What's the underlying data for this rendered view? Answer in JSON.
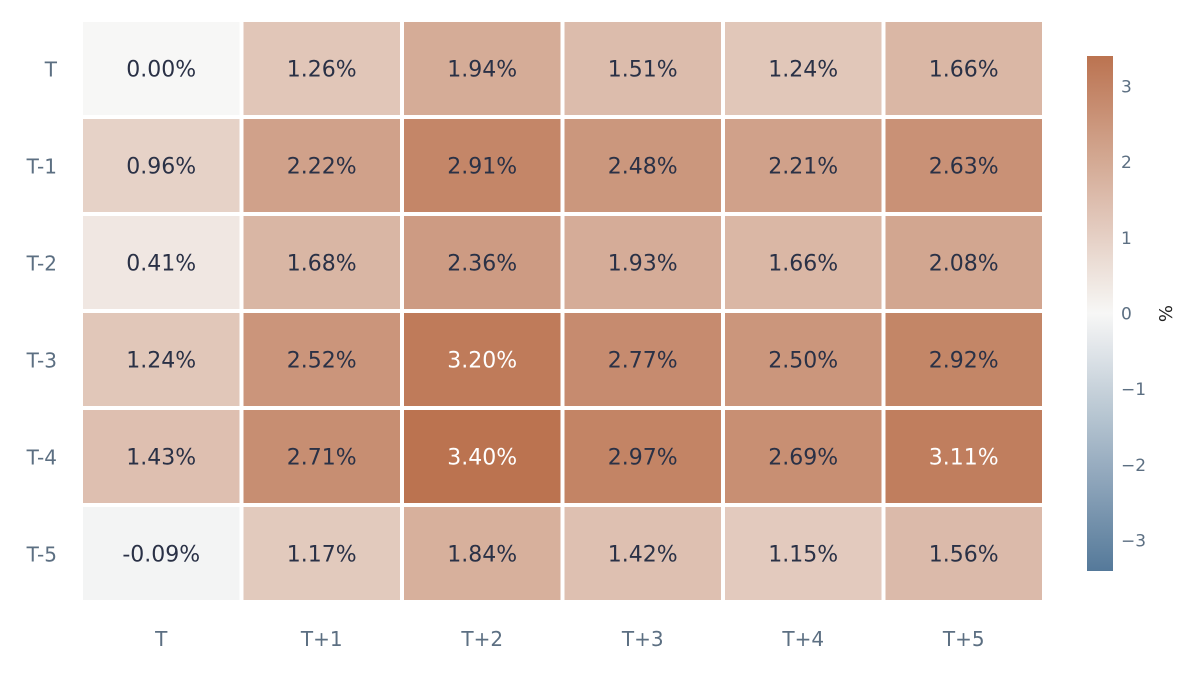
{
  "chart_data": {
    "type": "heatmap",
    "x_categories": [
      "T",
      "T+1",
      "T+2",
      "T+3",
      "T+4",
      "T+5"
    ],
    "y_categories": [
      "T",
      "T-1",
      "T-2",
      "T-3",
      "T-4",
      "T-5"
    ],
    "values": [
      [
        0.0,
        1.26,
        1.94,
        1.51,
        1.24,
        1.66
      ],
      [
        0.96,
        2.22,
        2.91,
        2.48,
        2.21,
        2.63
      ],
      [
        0.41,
        1.68,
        2.36,
        1.93,
        1.66,
        2.08
      ],
      [
        1.24,
        2.52,
        3.2,
        2.77,
        2.5,
        2.92
      ],
      [
        1.43,
        2.71,
        3.4,
        2.97,
        2.69,
        3.11
      ],
      [
        -0.09,
        1.17,
        1.84,
        1.42,
        1.15,
        1.56
      ]
    ],
    "cell_labels": [
      [
        "0.00%",
        "1.26%",
        "1.94%",
        "1.51%",
        "1.24%",
        "1.66%"
      ],
      [
        "0.96%",
        "2.22%",
        "2.91%",
        "2.48%",
        "2.21%",
        "2.63%"
      ],
      [
        "0.41%",
        "1.68%",
        "2.36%",
        "1.93%",
        "1.66%",
        "2.08%"
      ],
      [
        "1.24%",
        "2.52%",
        "3.20%",
        "2.77%",
        "2.50%",
        "2.92%"
      ],
      [
        "1.43%",
        "2.71%",
        "3.40%",
        "2.97%",
        "2.69%",
        "3.11%"
      ],
      [
        "-0.09%",
        "1.17%",
        "1.84%",
        "1.42%",
        "1.15%",
        "1.56%"
      ]
    ],
    "colorbar": {
      "title": "%",
      "range": [
        -3.4,
        3.4
      ],
      "ticks": [
        3,
        2,
        1,
        0,
        -1,
        -2,
        -3
      ],
      "tick_labels": [
        "3",
        "2",
        "1",
        "0",
        "−1",
        "−2",
        "−3"
      ],
      "colors": {
        "negative": "#55799a",
        "neutral": "#f7f7f6",
        "positive": "#bb7350"
      }
    },
    "text_colors": {
      "dark": "#2a3146",
      "light": "#ffffff"
    },
    "axis_label_color": "#5c6f82",
    "title": "",
    "xlabel": "",
    "ylabel": ""
  }
}
